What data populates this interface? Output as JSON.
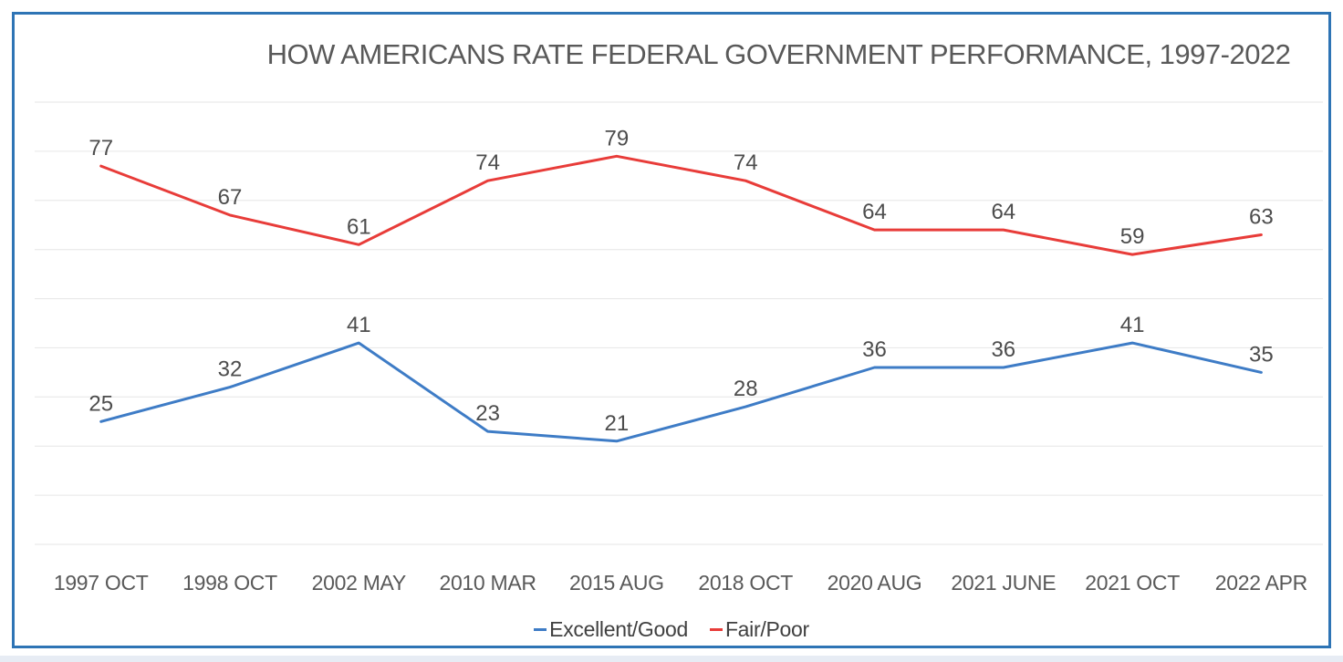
{
  "chart_data": {
    "type": "line",
    "title": "HOW AMERICANS RATE FEDERAL GOVERNMENT PERFORMANCE, 1997-2022",
    "categories": [
      "1997 OCT",
      "1998 OCT",
      "2002 MAY",
      "2010 MAR",
      "2015 AUG",
      "2018 OCT",
      "2020 AUG",
      "2021 JUNE",
      "2021 OCT",
      "2022 APR"
    ],
    "series": [
      {
        "name": "Excellent/Good",
        "color": "#3e7cc6",
        "values": [
          25,
          32,
          41,
          23,
          21,
          28,
          36,
          36,
          41,
          35
        ]
      },
      {
        "name": "Fair/Poor",
        "color": "#e83c39",
        "values": [
          77,
          67,
          61,
          74,
          79,
          74,
          64,
          64,
          59,
          63
        ]
      }
    ],
    "xlabel": "",
    "ylabel": "",
    "ylim": [
      0,
      90
    ],
    "grid_step": 10,
    "grid": "horizontal-only",
    "y_axis_labels_visible": false,
    "data_labels": true,
    "legend_position": "bottom-center"
  },
  "frame": {
    "border_color": "#2e74b5",
    "background": "#ffffff",
    "gridline_color": "#e6e6e6",
    "title_color": "#595959",
    "axis_label_color": "#595959",
    "data_label_color": "#4d4d4d"
  }
}
